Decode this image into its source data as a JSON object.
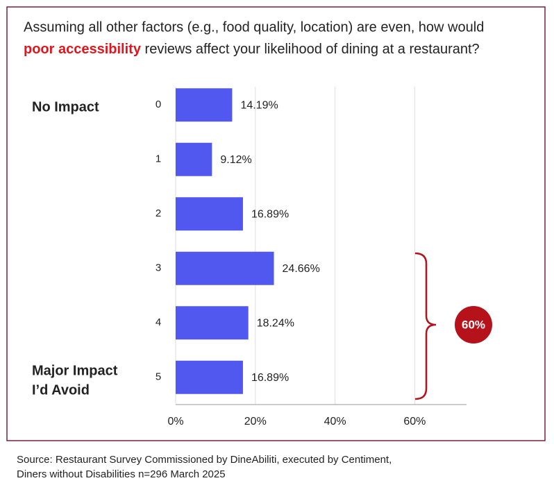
{
  "chart_data": {
    "type": "barh",
    "title_start": "Assuming all other factors (e.g., food quality, location) are even, how would",
    "title_highlight": "poor accessibility",
    "title_end": "reviews affect your likelihood of dining at a restaurant?",
    "categories": [
      "0",
      "1",
      "2",
      "3",
      "4",
      "5"
    ],
    "values": [
      14.19,
      9.12,
      16.89,
      24.66,
      18.24,
      16.89
    ],
    "value_labels": [
      "14.19%",
      "9.12%",
      "16.89%",
      "24.66%",
      "18.24%",
      "16.89%"
    ],
    "color": "#5058f0",
    "xlim": [
      0,
      73
    ],
    "xticks": [
      {
        "value": 0,
        "label": "0%"
      },
      {
        "value": 20,
        "label": "20%"
      },
      {
        "value": 40,
        "label": "40%"
      },
      {
        "value": 60,
        "label": "60%"
      }
    ],
    "grid": true,
    "top_label": "No Impact",
    "bottom_label": [
      "Major Impact",
      "I’d Avoid"
    ],
    "annotation": "60%",
    "source": [
      "Source: Restaurant Survey Commissioned by DineAbiliti, executed by Centiment,",
      "Diners without Disabilities n=296 March 2025"
    ]
  }
}
